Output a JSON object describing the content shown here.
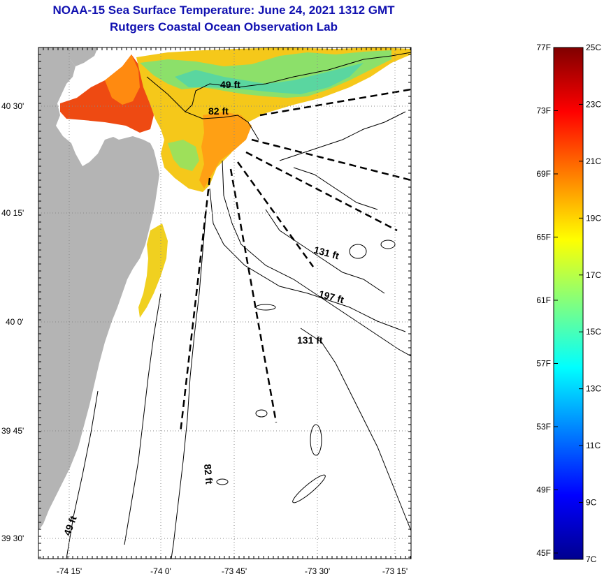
{
  "title": {
    "line1": "NOAA-15 Sea Surface Temperature:  June 24, 2021 1312 GMT",
    "line2": "Rutgers Coastal Ocean Observation Lab"
  },
  "map": {
    "lat_ticks": [
      "40 30'",
      "40 15'",
      "40 0'",
      "39 45'",
      "39 30'"
    ],
    "lon_ticks": [
      "-74 15'",
      "-74 0'",
      "-73 45'",
      "-73 30'",
      "-73 15'"
    ],
    "contour_labels": [
      "49 ft",
      "82 ft",
      "131 ft",
      "197 ft",
      "131 ft",
      "82 ft",
      "49 ft"
    ],
    "colors": {
      "land": "#b4b4b4",
      "sea": "#ffffff",
      "contour": "#000000"
    }
  },
  "colorbar": {
    "fahrenheit": [
      "77F",
      "73F",
      "69F",
      "65F",
      "61F",
      "57F",
      "53F",
      "49F",
      "45F"
    ],
    "celsius": [
      "25C",
      "23C",
      "21C",
      "19C",
      "17C",
      "15C",
      "13C",
      "11C",
      "9C",
      "7C"
    ],
    "range_c": [
      7,
      25
    ],
    "colormap": [
      "#00008f",
      "#0000ff",
      "#0080ff",
      "#00ffff",
      "#80ff80",
      "#ffff00",
      "#ff8000",
      "#ff0000",
      "#800000"
    ]
  }
}
